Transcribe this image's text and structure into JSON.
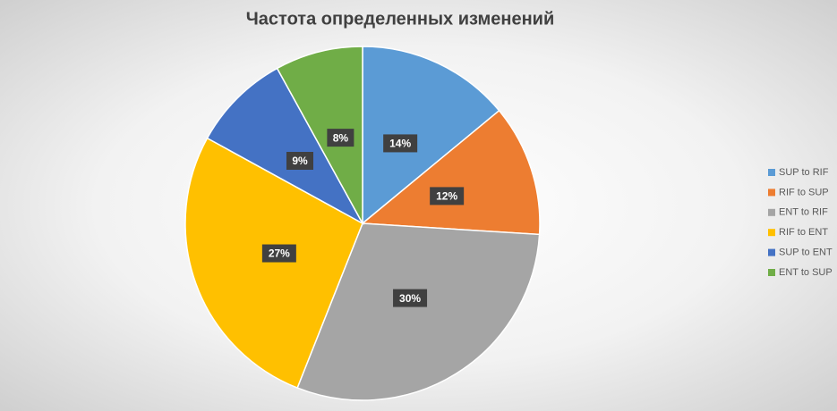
{
  "chart_data": {
    "type": "pie",
    "title": "Частота определенных изменений",
    "categories": [
      "SUP to RIF",
      "RIF to SUP",
      "ENT to RIF",
      "RIF to ENT",
      "SUP to ENT",
      "ENT to SUP"
    ],
    "values": [
      14,
      12,
      30,
      27,
      9,
      8
    ],
    "value_labels": [
      "14%",
      "12%",
      "30%",
      "27%",
      "9%",
      "8%"
    ],
    "colors": [
      "#5B9BD5",
      "#ED7D31",
      "#A5A5A5",
      "#FFC000",
      "#4472C4",
      "#70AD47"
    ],
    "legend": "right"
  }
}
